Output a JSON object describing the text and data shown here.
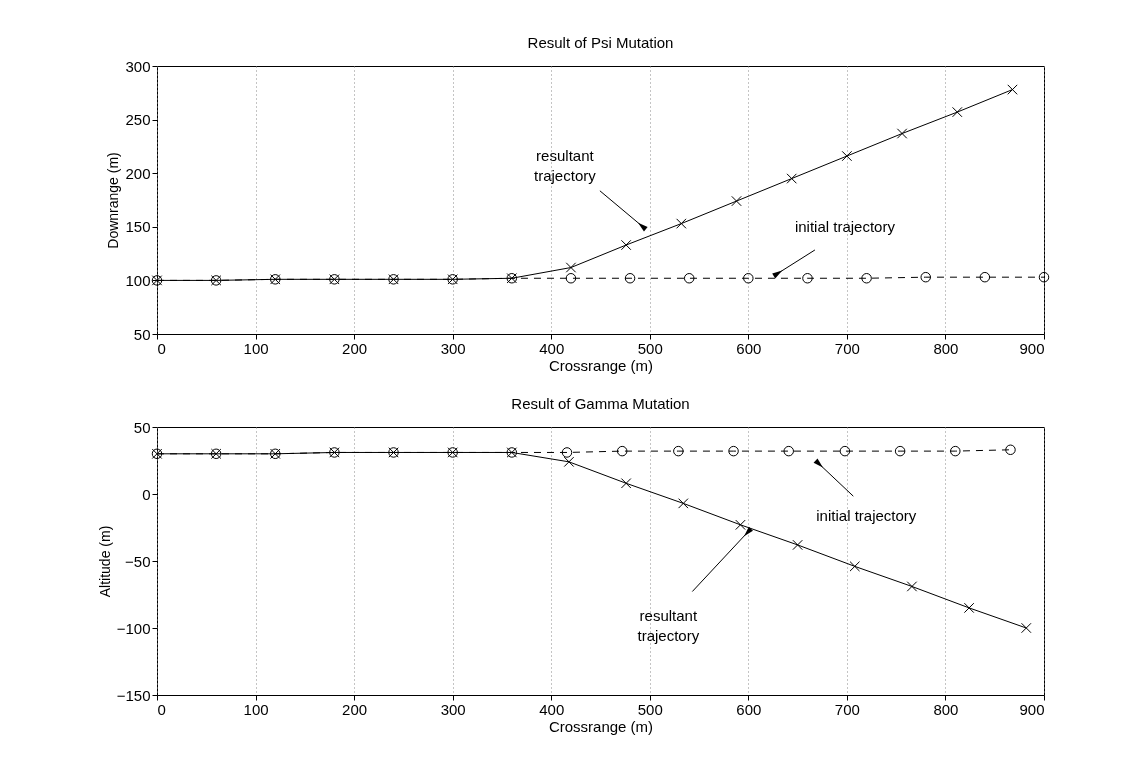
{
  "chart_data": [
    {
      "type": "line",
      "title": "Result of Psi Mutation",
      "xlabel": "Crossrange (m)",
      "ylabel": "Downrange (m)",
      "xlim": [
        0,
        900
      ],
      "xticks": [
        0,
        100,
        200,
        300,
        400,
        500,
        600,
        700,
        800,
        900
      ],
      "ylim": [
        50,
        300
      ],
      "yticks": [
        50,
        100,
        150,
        200,
        250,
        300
      ],
      "grid": "x",
      "series": [
        {
          "color": "#000000",
          "line_style": "dashed",
          "marker": "circle",
          "x": [
            0,
            60,
            120,
            180,
            240,
            300,
            360,
            420,
            480,
            540,
            600,
            660,
            720,
            780,
            840,
            900
          ],
          "values": [
            100,
            100,
            101,
            101,
            101,
            101,
            102,
            102,
            102,
            102,
            102,
            102,
            102,
            103,
            103,
            103
          ]
        },
        {
          "color": "#000000",
          "line_style": "solid",
          "marker": "cross",
          "x": [
            0,
            60,
            120,
            180,
            240,
            300,
            360,
            420,
            476,
            532,
            588,
            644,
            700,
            756,
            812,
            868
          ],
          "values": [
            100,
            100,
            101,
            101,
            101,
            101,
            102,
            112,
            133,
            153,
            174,
            195,
            216,
            237,
            257,
            278
          ]
        }
      ],
      "annotations": [
        {
          "text": "resultant\ntrajectory",
          "x": 493,
          "y": 150
        },
        {
          "text": "initial trajectory",
          "x": 629,
          "y": 106
        }
      ]
    },
    {
      "type": "line",
      "title": "Result of Gamma Mutation",
      "xlabel": "Crossrange (m)",
      "ylabel": "Altitude (m)",
      "xlim": [
        0,
        900
      ],
      "xticks": [
        0,
        100,
        200,
        300,
        400,
        500,
        600,
        700,
        800,
        900
      ],
      "ylim": [
        -150,
        50
      ],
      "yticks": [
        -150,
        -100,
        -50,
        0,
        50
      ],
      "grid": "x",
      "series": [
        {
          "color": "#000000",
          "line_style": "dashed",
          "marker": "circle",
          "x": [
            0,
            60,
            120,
            180,
            240,
            300,
            360,
            416,
            472,
            529,
            585,
            641,
            698,
            754,
            810,
            866
          ],
          "values": [
            30,
            30,
            30,
            31,
            31,
            31,
            31,
            31,
            32,
            32,
            32,
            32,
            32,
            32,
            32,
            33
          ]
        },
        {
          "color": "#000000",
          "line_style": "solid",
          "marker": "cross",
          "x": [
            0,
            60,
            120,
            180,
            240,
            300,
            360,
            418,
            476,
            534,
            592,
            650,
            708,
            766,
            824,
            882
          ],
          "values": [
            30,
            30,
            30,
            31,
            31,
            31,
            31,
            24,
            8,
            -7,
            -23,
            -38,
            -54,
            -69,
            -85,
            -100
          ]
        }
      ],
      "annotations": [
        {
          "text": "initial trajectory",
          "x": 671,
          "y": 23
        },
        {
          "text": "resultant\ntrajectory",
          "x": 600,
          "y": -28
        }
      ]
    }
  ]
}
